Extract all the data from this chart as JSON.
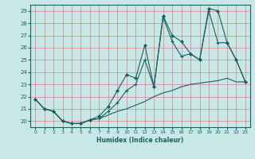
{
  "xlabel": "Humidex (Indice chaleur)",
  "bg_color": "#c8e8e8",
  "grid_color": "#e08080",
  "line_color": "#1a6060",
  "xlim": [
    -0.5,
    23.5
  ],
  "ylim": [
    19.5,
    29.5
  ],
  "yticks": [
    20,
    21,
    22,
    23,
    24,
    25,
    26,
    27,
    28,
    29
  ],
  "xticks": [
    0,
    1,
    2,
    3,
    4,
    5,
    6,
    7,
    8,
    9,
    10,
    11,
    12,
    13,
    14,
    15,
    16,
    17,
    18,
    19,
    20,
    21,
    22,
    23
  ],
  "series1_x": [
    0,
    1,
    2,
    3,
    4,
    5,
    6,
    7,
    8,
    9,
    10,
    11,
    12,
    13,
    14,
    15,
    16,
    17,
    18,
    19,
    20,
    21,
    22,
    23
  ],
  "series1_y": [
    21.8,
    21.0,
    20.8,
    20.0,
    19.8,
    19.8,
    20.1,
    20.2,
    20.5,
    20.8,
    21.0,
    21.3,
    21.6,
    22.0,
    22.3,
    22.5,
    22.8,
    23.0,
    23.1,
    23.2,
    23.3,
    23.5,
    23.2,
    23.2
  ],
  "series2_x": [
    0,
    1,
    2,
    3,
    4,
    5,
    6,
    7,
    8,
    9,
    10,
    11,
    12,
    13,
    14,
    15,
    16,
    17,
    18,
    19,
    20,
    21,
    22,
    23
  ],
  "series2_y": [
    21.8,
    21.0,
    20.8,
    20.0,
    19.8,
    19.8,
    20.1,
    20.2,
    20.8,
    21.5,
    22.5,
    23.0,
    25.0,
    22.8,
    28.5,
    26.5,
    25.3,
    25.5,
    25.0,
    29.0,
    26.4,
    26.4,
    25.0,
    23.2
  ],
  "series3_x": [
    0,
    1,
    2,
    3,
    4,
    5,
    6,
    7,
    8,
    9,
    10,
    11,
    12,
    13,
    14,
    15,
    16,
    17,
    18,
    19,
    20,
    21,
    22,
    23
  ],
  "series3_y": [
    21.8,
    21.0,
    20.8,
    20.0,
    19.8,
    19.8,
    20.1,
    20.4,
    21.2,
    22.5,
    23.8,
    23.5,
    26.2,
    22.8,
    28.6,
    27.0,
    26.5,
    25.5,
    25.0,
    29.2,
    29.0,
    26.4,
    25.0,
    23.2
  ]
}
